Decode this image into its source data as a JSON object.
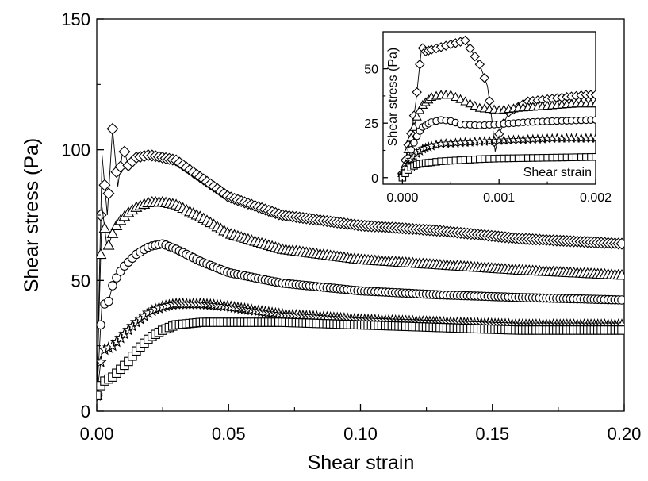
{
  "chart_data": [
    {
      "type": "scatter",
      "xlabel": "Shear strain",
      "ylabel": "Shear stress (Pa)",
      "xlim": [
        0,
        0.2
      ],
      "ylim": [
        0,
        150
      ],
      "xticks": [
        "0.00",
        "0.05",
        "0.10",
        "0.15",
        "0.20"
      ],
      "yticks": [
        "0",
        "50",
        "100",
        "150"
      ],
      "grid": false,
      "series": [
        {
          "marker": "diamond",
          "x": [
            0,
            0.002,
            0.004,
            0.006,
            0.008,
            0.01,
            0.012,
            0.015,
            0.02,
            0.025,
            0.03,
            0.04,
            0.05,
            0.07,
            0.1,
            0.13,
            0.16,
            0.2
          ],
          "y": [
            6,
            98,
            75,
            108,
            86,
            101,
            94,
            97,
            98,
            97,
            96,
            89,
            82,
            75,
            71,
            69,
            66,
            64
          ]
        },
        {
          "marker": "triangle",
          "x": [
            0,
            0.002,
            0.004,
            0.006,
            0.008,
            0.01,
            0.012,
            0.015,
            0.02,
            0.025,
            0.03,
            0.04,
            0.05,
            0.07,
            0.1,
            0.13,
            0.16,
            0.2
          ],
          "y": [
            6,
            78,
            62,
            68,
            72,
            74,
            76,
            78,
            80,
            80,
            79,
            74,
            68,
            62,
            58,
            56,
            54,
            52
          ]
        },
        {
          "marker": "circle",
          "x": [
            0,
            0.002,
            0.004,
            0.006,
            0.008,
            0.01,
            0.012,
            0.015,
            0.02,
            0.025,
            0.03,
            0.04,
            0.05,
            0.07,
            0.1,
            0.13,
            0.16,
            0.2
          ],
          "y": [
            6,
            42,
            40,
            48,
            52,
            55,
            57,
            60,
            63,
            64,
            62,
            57,
            53,
            49,
            46,
            44.5,
            43.5,
            42.5
          ]
        },
        {
          "marker": "star",
          "x": [
            0,
            0.002,
            0.004,
            0.006,
            0.008,
            0.01,
            0.012,
            0.015,
            0.02,
            0.025,
            0.03,
            0.04,
            0.05,
            0.07,
            0.1,
            0.13,
            0.16,
            0.2
          ],
          "y": [
            6,
            23,
            24,
            25,
            27,
            29,
            31,
            34,
            38,
            40,
            41,
            41,
            40,
            37,
            35,
            34,
            33,
            33
          ]
        },
        {
          "marker": "square",
          "x": [
            0,
            0.002,
            0.004,
            0.006,
            0.008,
            0.01,
            0.012,
            0.015,
            0.02,
            0.025,
            0.03,
            0.04,
            0.05,
            0.07,
            0.1,
            0.13,
            0.16,
            0.2
          ],
          "y": [
            6,
            11,
            12,
            13,
            15,
            17,
            19,
            23,
            28,
            31,
            33,
            34,
            34,
            34,
            33,
            32,
            31,
            31
          ]
        }
      ]
    },
    {
      "type": "scatter",
      "inset": true,
      "xlabel": "Shear strain",
      "ylabel": "Shear stress (Pa)",
      "xlim": [
        -0.0002,
        0.002
      ],
      "ylim": [
        -3,
        67
      ],
      "xticks": [
        "0.000",
        "0.001",
        "0.002"
      ],
      "yticks": [
        "0",
        "25",
        "50"
      ],
      "grid": false,
      "series": [
        {
          "marker": "diamond",
          "x": [
            0,
            3e-05,
            6e-05,
            0.0001,
            0.00014,
            0.00018,
            0.0002,
            0.00024,
            0.00065,
            0.0008,
            0.00088,
            0.00093,
            0.00096,
            0.001,
            0.0011,
            0.0013,
            0.0015,
            0.0017,
            0.0019,
            0.002
          ],
          "y": [
            2,
            8,
            15,
            22,
            35,
            52,
            60,
            58,
            63,
            52,
            42,
            25,
            12,
            20,
            30,
            35,
            36,
            37,
            38,
            38
          ]
        },
        {
          "marker": "triangle",
          "x": [
            0,
            3e-05,
            6e-05,
            0.0001,
            0.00015,
            0.0002,
            0.00025,
            0.0003,
            0.0004,
            0.0005,
            0.0006,
            0.0007,
            0.0008,
            0.001,
            0.0012,
            0.0015,
            0.0018,
            0.002
          ],
          "y": [
            2,
            6,
            13,
            20,
            28,
            33,
            35,
            37,
            38,
            38,
            36,
            34,
            32,
            31,
            32,
            33,
            34,
            34
          ]
        },
        {
          "marker": "circle",
          "x": [
            0,
            3e-05,
            6e-05,
            0.0001,
            0.00015,
            0.0002,
            0.0003,
            0.0004,
            0.0005,
            0.0006,
            0.0008,
            0.001,
            0.0013,
            0.0016,
            0.002
          ],
          "y": [
            1,
            4,
            9,
            14,
            19,
            23,
            25.5,
            26.5,
            26,
            24.5,
            24,
            24.5,
            25.5,
            26,
            26.5
          ]
        },
        {
          "marker": "star",
          "x": [
            0,
            3e-05,
            6e-05,
            0.0001,
            0.00015,
            0.0002,
            0.0003,
            0.0004,
            0.0006,
            0.0008,
            0.001,
            0.0013,
            0.0016,
            0.002
          ],
          "y": [
            1,
            3,
            6,
            9,
            11,
            13,
            14.5,
            15.5,
            16,
            16.5,
            17,
            17.5,
            18,
            18
          ]
        },
        {
          "marker": "square",
          "x": [
            0,
            3e-05,
            6e-05,
            0.0001,
            0.00015,
            0.0002,
            0.0003,
            0.0004,
            0.0006,
            0.0008,
            0.001,
            0.0013,
            0.0016,
            0.002
          ],
          "y": [
            0,
            2,
            3.5,
            5,
            6,
            6.5,
            7,
            7.5,
            8,
            8.5,
            8.8,
            9,
            9.2,
            9.5
          ]
        }
      ]
    }
  ]
}
